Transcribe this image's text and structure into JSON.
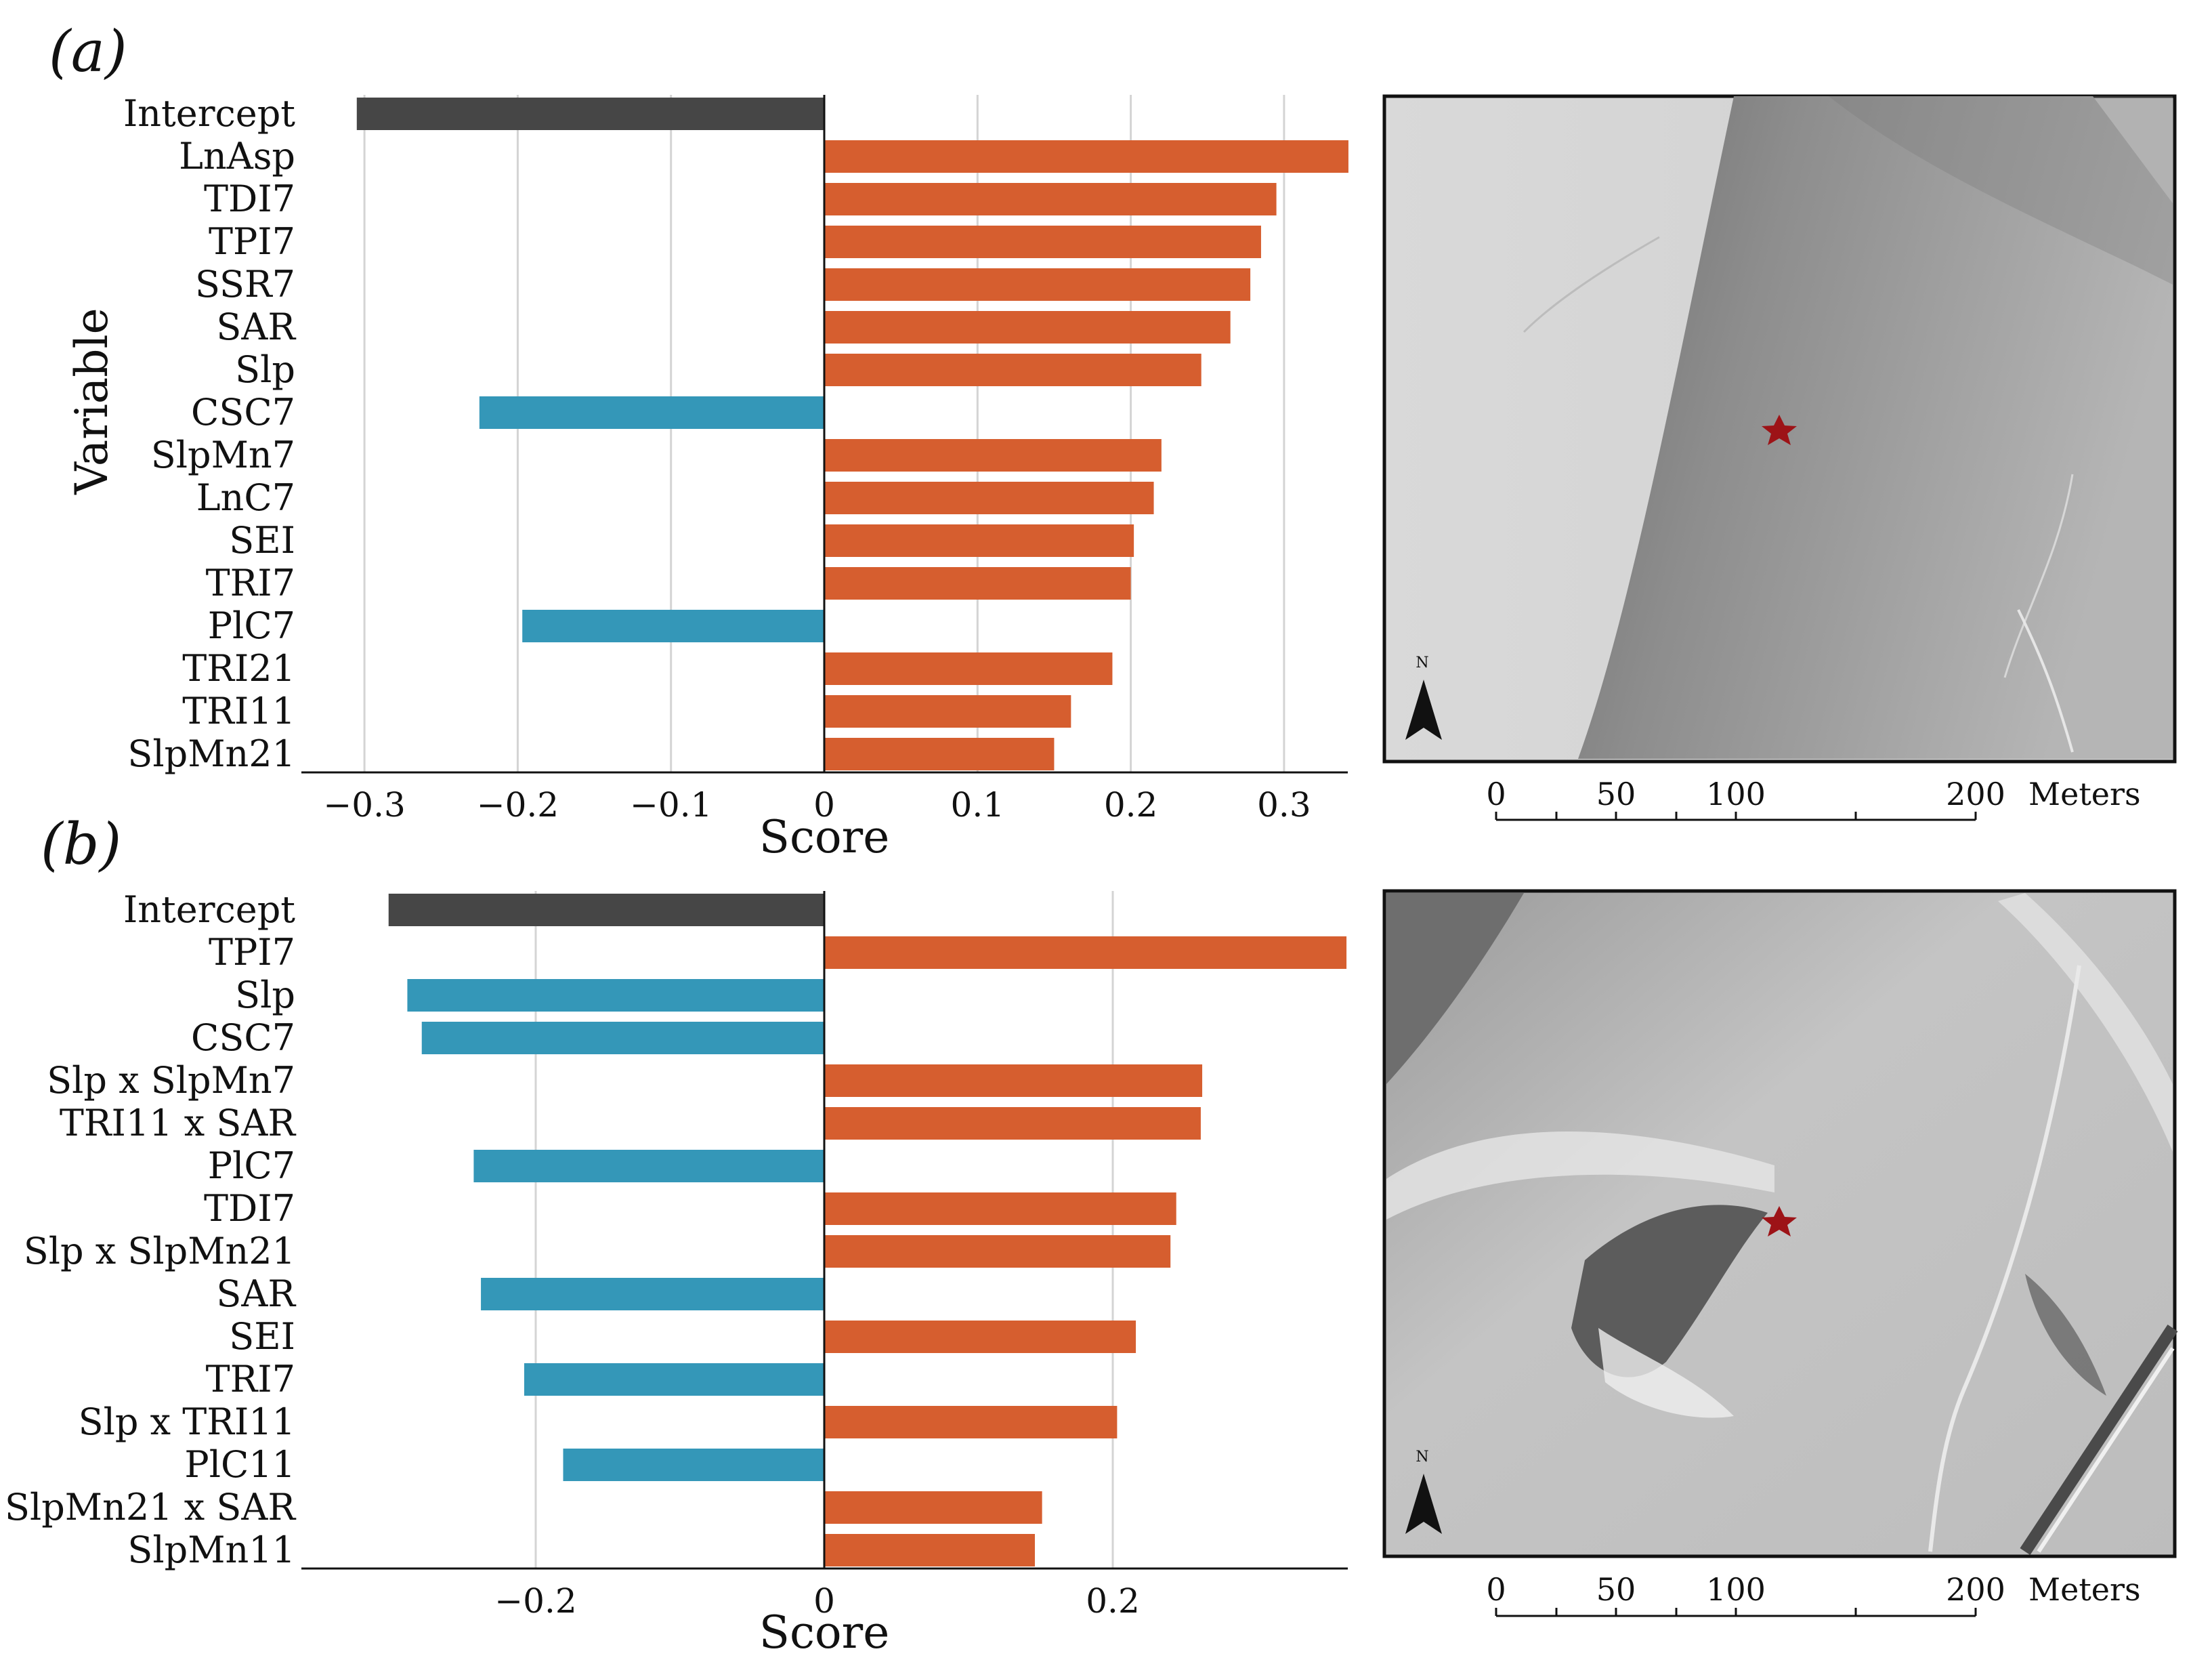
{
  "panel_labels": [
    "(a)",
    "(b)"
  ],
  "chart_data": [
    {
      "type": "bar",
      "orientation": "horizontal",
      "panel": "(a)",
      "title": "",
      "xlabel": "Score",
      "ylabel": "Variable",
      "xlim": [
        -0.34,
        0.342
      ],
      "xticks": [
        -0.3,
        -0.2,
        -0.1,
        0,
        0.1,
        0.2,
        0.3
      ],
      "xtick_labels": [
        "−0.3",
        "−0.2",
        "−0.1",
        "0",
        "0.1",
        "0.2",
        "0.3"
      ],
      "grid": true,
      "categories": [
        "Intercept",
        "LnAsp",
        "TDI7",
        "TPI7",
        "SSR7",
        "SAR",
        "Slp",
        "CSC7",
        "SlpMn7",
        "LnC7",
        "SEI",
        "TRI7",
        "PlC7",
        "TRI21",
        "TRI11",
        "SlpMn21"
      ],
      "values": [
        -0.305,
        0.342,
        0.295,
        0.285,
        0.278,
        0.265,
        0.246,
        -0.225,
        0.22,
        0.215,
        0.202,
        0.2,
        -0.197,
        0.188,
        0.161,
        0.15
      ],
      "colors": {
        "intercept": "#464646",
        "positive": "#d65e2f",
        "negative": "#3497b8"
      }
    },
    {
      "type": "bar",
      "orientation": "horizontal",
      "panel": "(b)",
      "title": "",
      "xlabel": "Score",
      "ylabel": "",
      "xlim": [
        -0.362,
        0.362
      ],
      "xticks": [
        -0.2,
        0,
        0.2
      ],
      "xtick_labels": [
        "−0.2",
        "0",
        "0.2"
      ],
      "grid": true,
      "categories": [
        "Intercept",
        "TPI7",
        "Slp",
        "CSC7",
        "Slp x SlpMn7",
        "TRI11 x SAR",
        "PlC7",
        "TDI7",
        "Slp x SlpMn21",
        "SAR",
        "SEI",
        "TRI7",
        "Slp x TRI11",
        "PlC11",
        "SlpMn21 x SAR",
        "SlpMn11"
      ],
      "values": [
        -0.302,
        0.362,
        -0.289,
        -0.279,
        0.262,
        0.261,
        -0.243,
        0.244,
        0.24,
        -0.238,
        0.216,
        -0.208,
        0.203,
        -0.181,
        0.151,
        0.146
      ],
      "colors": {
        "intercept": "#464646",
        "positive": "#d65e2f",
        "negative": "#3497b8"
      }
    }
  ],
  "maps": [
    {
      "north_label": "N",
      "scale_labels": [
        "0",
        "50",
        "100",
        "200"
      ],
      "scale_unit": "Meters"
    },
    {
      "north_label": "N",
      "scale_labels": [
        "0",
        "50",
        "100",
        "200"
      ],
      "scale_unit": "Meters"
    }
  ]
}
